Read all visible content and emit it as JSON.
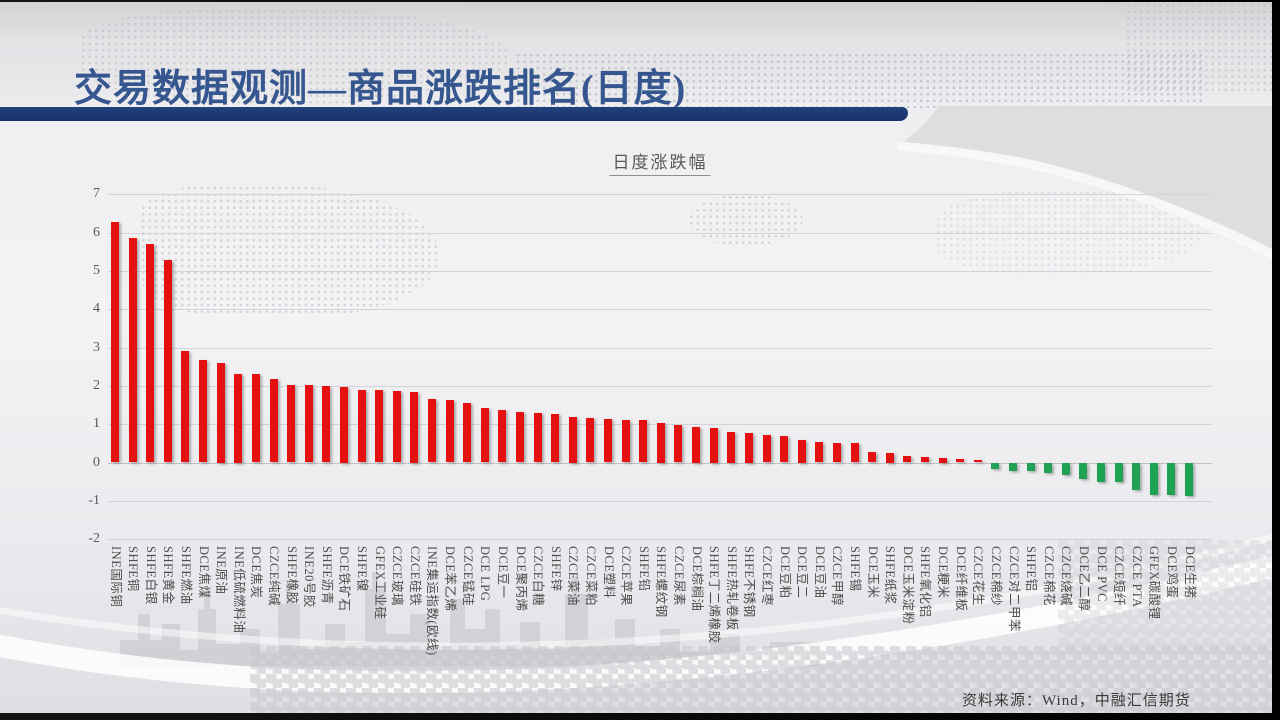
{
  "slide": {
    "title": "交易数据观测—商品涨跌排名(日度)",
    "source_note": "资料来源：Wind，中融汇信期货"
  },
  "theme": {
    "title_color": "#35568f",
    "title_bar_color": "#16306a",
    "positive_bar_color": "#e51010",
    "negative_bar_color": "#1fa254",
    "axis_text_color": "#595959"
  },
  "chart_data": {
    "type": "bar",
    "title": "日度涨跌幅",
    "xlabel": "",
    "ylabel": "",
    "ylim": [
      -2,
      7
    ],
    "yticks": [
      7,
      6,
      5,
      4,
      3,
      2,
      1,
      0,
      -1,
      -2
    ],
    "grid": true,
    "legend_position": "none",
    "categories": [
      "INE国际铜",
      "SHFE铜",
      "SHFE白银",
      "SHFE黄金",
      "SHFE燃油",
      "DCE焦煤",
      "INE原油",
      "INE低硫燃料油",
      "DCE焦炭",
      "CZCE纯碱",
      "SHFE橡胶",
      "INE20号胶",
      "SHFE沥青",
      "DCE铁矿石",
      "SHFE镍",
      "GFEX工业硅",
      "CZCE玻璃",
      "CZCE硅铁",
      "INE集运指数(欧线)",
      "DCE苯乙烯",
      "CZCE锰硅",
      "DCE LPG",
      "DCE豆一",
      "DCE聚丙烯",
      "CZCE白糖",
      "SHFE锌",
      "CZCE菜油",
      "CZCE菜粕",
      "DCE塑料",
      "CZCE苹果",
      "SHFE铅",
      "SHFE螺纹钢",
      "CZCE尿素",
      "DCE棕榈油",
      "SHFE丁二烯橡胶",
      "SHFE热轧卷板",
      "SHFE不锈钢",
      "CZCE红枣",
      "DCE豆粕",
      "DCE豆二",
      "DCE豆油",
      "CZCE甲醇",
      "SHFE锡",
      "DCE玉米",
      "SHFE纸浆",
      "DCE玉米淀粉",
      "SHFE氧化铝",
      "DCE粳米",
      "DCE纤维板",
      "CZCE花生",
      "CZCE棉纱",
      "CZCE对二甲苯",
      "SHFE铝",
      "CZCE棉花",
      "CZCE烧碱",
      "DCE乙二醇",
      "DCE PVC",
      "CZCE短纤",
      "CZCE PTA",
      "GFEX碳酸锂",
      "DCE鸡蛋",
      "DCE生猪"
    ],
    "values": [
      6.28,
      5.85,
      5.7,
      5.28,
      2.92,
      2.67,
      2.61,
      2.31,
      2.3,
      2.17,
      2.03,
      2.02,
      2.0,
      1.97,
      1.9,
      1.89,
      1.86,
      1.84,
      1.65,
      1.62,
      1.56,
      1.43,
      1.36,
      1.31,
      1.3,
      1.27,
      1.2,
      1.17,
      1.14,
      1.12,
      1.1,
      1.03,
      0.97,
      0.94,
      0.9,
      0.81,
      0.77,
      0.72,
      0.68,
      0.6,
      0.53,
      0.52,
      0.5,
      0.28,
      0.26,
      0.16,
      0.14,
      0.13,
      0.09,
      0.07,
      -0.17,
      -0.21,
      -0.23,
      -0.27,
      -0.32,
      -0.44,
      -0.5,
      -0.51,
      -0.72,
      -0.85,
      -0.85,
      -0.88
    ]
  }
}
